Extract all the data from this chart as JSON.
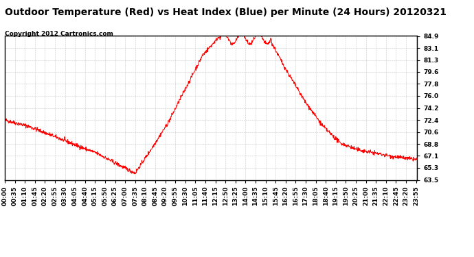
{
  "title": "Outdoor Temperature (Red) vs Heat Index (Blue) per Minute (24 Hours) 20120321",
  "subtitle": "Copyright 2012 Cartronics.com",
  "yticks": [
    63.5,
    65.3,
    67.1,
    68.8,
    70.6,
    72.4,
    74.2,
    76.0,
    77.8,
    79.6,
    81.3,
    83.1,
    84.9
  ],
  "ymin": 63.5,
  "ymax": 84.9,
  "line_color_temp": "red",
  "background_color": "#ffffff",
  "grid_color": "#bbbbbb",
  "title_fontsize": 10,
  "subtitle_fontsize": 6.5,
  "tick_fontsize": 6.5,
  "xtick_interval": 35
}
